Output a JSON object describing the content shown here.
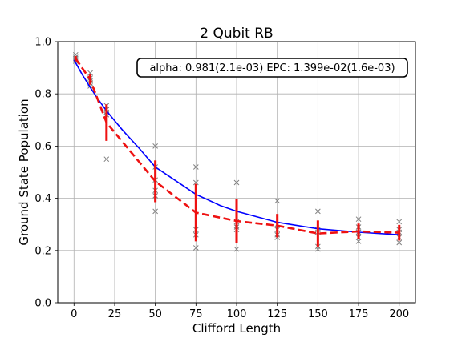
{
  "chart_data": {
    "type": "scatter",
    "title": "2 Qubit RB",
    "xlabel": "Clifford Length",
    "ylabel": "Ground State Population",
    "xlim": [
      -10,
      210
    ],
    "ylim": [
      0.0,
      1.0
    ],
    "xticks": [
      0,
      25,
      50,
      75,
      100,
      125,
      150,
      175,
      200
    ],
    "yticks": [
      0.0,
      0.2,
      0.4,
      0.6,
      0.8,
      1.0
    ],
    "grid": true,
    "annotation": "alpha: 0.981(2.1e-03) EPC: 1.399e-02(1.6e-03)",
    "colors": {
      "fit": "#0000ff",
      "mean": "#ee1111",
      "samples": "#808080"
    },
    "samples": {
      "x": [
        1,
        1,
        1,
        1,
        1,
        10,
        10,
        10,
        10,
        10,
        20,
        20,
        20,
        20,
        20,
        50,
        50,
        50,
        50,
        50,
        50,
        75,
        75,
        75,
        75,
        75,
        100,
        100,
        100,
        100,
        100,
        125,
        125,
        125,
        125,
        125,
        150,
        150,
        150,
        150,
        150,
        175,
        175,
        175,
        175,
        175,
        200,
        200,
        200,
        200,
        200
      ],
      "y": [
        0.95,
        0.94,
        0.935,
        0.93,
        0.925,
        0.88,
        0.86,
        0.85,
        0.84,
        0.83,
        0.755,
        0.74,
        0.73,
        0.72,
        0.55,
        0.6,
        0.52,
        0.47,
        0.43,
        0.41,
        0.35,
        0.52,
        0.46,
        0.28,
        0.26,
        0.21,
        0.46,
        0.31,
        0.29,
        0.28,
        0.205,
        0.39,
        0.3,
        0.28,
        0.26,
        0.25,
        0.35,
        0.28,
        0.27,
        0.215,
        0.205,
        0.32,
        0.29,
        0.27,
        0.25,
        0.235,
        0.31,
        0.28,
        0.27,
        0.25,
        0.23
      ]
    },
    "mean": {
      "x": [
        1,
        10,
        20,
        50,
        75,
        100,
        125,
        150,
        175,
        200
      ],
      "y": [
        0.935,
        0.855,
        0.69,
        0.465,
        0.345,
        0.313,
        0.295,
        0.265,
        0.273,
        0.268
      ],
      "err": [
        0.01,
        0.02,
        0.07,
        0.08,
        0.11,
        0.085,
        0.045,
        0.05,
        0.03,
        0.03
      ]
    },
    "fit": {
      "x": [
        0,
        5,
        10,
        15,
        20,
        25,
        30,
        40,
        50,
        60,
        75,
        90,
        100,
        125,
        150,
        175,
        200
      ],
      "y": [
        0.93,
        0.875,
        0.825,
        0.778,
        0.735,
        0.697,
        0.66,
        0.592,
        0.52,
        0.478,
        0.415,
        0.372,
        0.35,
        0.308,
        0.283,
        0.27,
        0.26
      ]
    }
  }
}
